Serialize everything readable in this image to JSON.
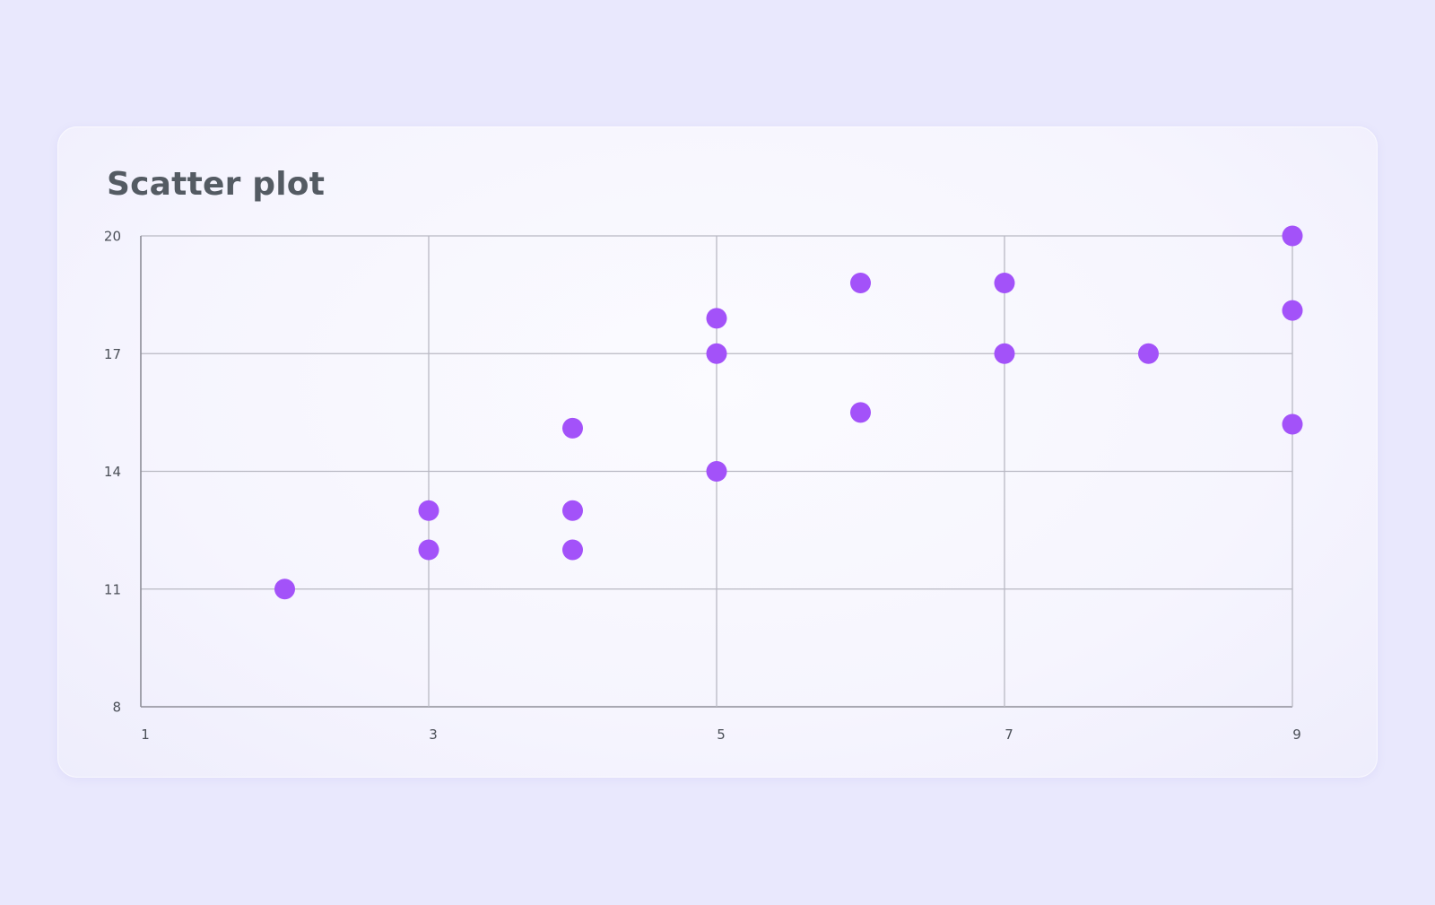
{
  "colors": {
    "background": "#e9e8fd",
    "card": "#f7f6fe",
    "title": "#545b63",
    "grid": "#b9b9c3",
    "point": "#a352f9"
  },
  "chart_data": {
    "type": "scatter",
    "title": "Scatter plot",
    "xlabel": "",
    "ylabel": "",
    "xlim": [
      1,
      9
    ],
    "ylim": [
      8,
      20
    ],
    "x_ticks": [
      1,
      3,
      5,
      7,
      9
    ],
    "y_ticks": [
      8,
      11,
      14,
      17,
      20
    ],
    "grid": true,
    "legend": "none",
    "series": [
      {
        "points": [
          [
            2,
            11
          ],
          [
            3,
            12
          ],
          [
            3,
            13
          ],
          [
            4,
            12
          ],
          [
            4,
            13
          ],
          [
            4,
            15.1
          ],
          [
            5,
            14
          ],
          [
            5,
            17
          ],
          [
            5,
            17.9
          ],
          [
            6,
            15.5
          ],
          [
            6,
            18.8
          ],
          [
            7,
            17
          ],
          [
            7,
            18.8
          ],
          [
            8,
            17
          ],
          [
            9,
            15.2
          ],
          [
            9,
            18.1
          ],
          [
            9,
            20
          ]
        ]
      }
    ]
  }
}
